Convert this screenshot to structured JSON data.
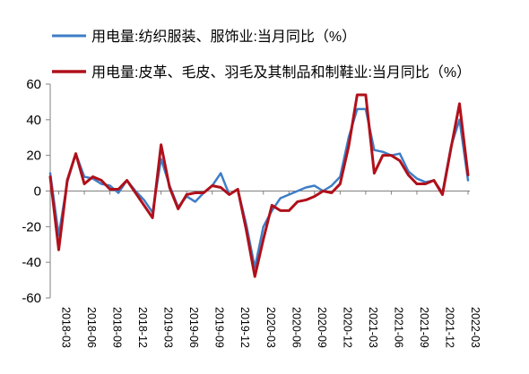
{
  "chart_data": {
    "type": "line",
    "title": "",
    "xlabel": "",
    "ylabel": "",
    "ylim": [
      -60,
      60
    ],
    "yticks": [
      -60,
      -40,
      -20,
      0,
      20,
      40,
      60
    ],
    "grid": false,
    "legend_position": "top-left",
    "x_tick_labels": [
      "2018-03",
      "2018-06",
      "2018-09",
      "2018-12",
      "2019-03",
      "2019-06",
      "2019-09",
      "2019-12",
      "2020-03",
      "2020-06",
      "2020-09",
      "2020-12",
      "2021-03",
      "2021-06",
      "2021-09",
      "2021-12",
      "2022-03"
    ],
    "x": [
      "2018-02",
      "2018-03",
      "2018-04",
      "2018-05",
      "2018-06",
      "2018-07",
      "2018-08",
      "2018-09",
      "2018-10",
      "2018-11",
      "2018-12",
      "2019-01",
      "2019-02",
      "2019-03",
      "2019-04",
      "2019-05",
      "2019-06",
      "2019-07",
      "2019-08",
      "2019-09",
      "2019-10",
      "2019-11",
      "2019-12",
      "2020-01",
      "2020-02",
      "2020-03",
      "2020-04",
      "2020-05",
      "2020-06",
      "2020-07",
      "2020-08",
      "2020-09",
      "2020-10",
      "2020-11",
      "2020-12",
      "2021-01",
      "2021-02",
      "2021-03",
      "2021-04",
      "2021-05",
      "2021-06",
      "2021-07",
      "2021-08",
      "2021-09",
      "2021-10",
      "2021-11",
      "2021-12",
      "2022-01",
      "2022-02",
      "2022-03"
    ],
    "series": [
      {
        "name": "用电量:纺织服装、服饰业:当月同比（%）",
        "color": "#3e7dc6",
        "values": [
          10,
          -25,
          5,
          21,
          8,
          7,
          4,
          3,
          -1,
          6,
          0,
          -5,
          -12,
          18,
          3,
          -9,
          -3,
          -6,
          -1,
          3,
          10,
          -2,
          1,
          -19,
          -43,
          -20,
          -11,
          -4,
          -2,
          0,
          2,
          3,
          0,
          3,
          8,
          30,
          46,
          46,
          23,
          22,
          20,
          21,
          11,
          7,
          5,
          6,
          -1,
          25,
          40,
          6
        ]
      },
      {
        "name": "用电量:皮革、毛皮、羽毛及其制品和制鞋业:当月同比（%）",
        "color": "#b0101a",
        "values": [
          8,
          -33,
          6,
          21,
          4,
          8,
          6,
          1,
          1,
          6,
          -1,
          -8,
          -15,
          26,
          2,
          -10,
          -2,
          -1,
          -1,
          3,
          2,
          -2,
          1,
          -22,
          -48,
          -27,
          -8,
          -11,
          -11,
          -6,
          -5,
          -3,
          0,
          -1,
          4,
          25,
          54,
          54,
          10,
          20,
          20,
          17,
          9,
          4,
          4,
          6,
          -2,
          24,
          49,
          9
        ]
      }
    ]
  }
}
